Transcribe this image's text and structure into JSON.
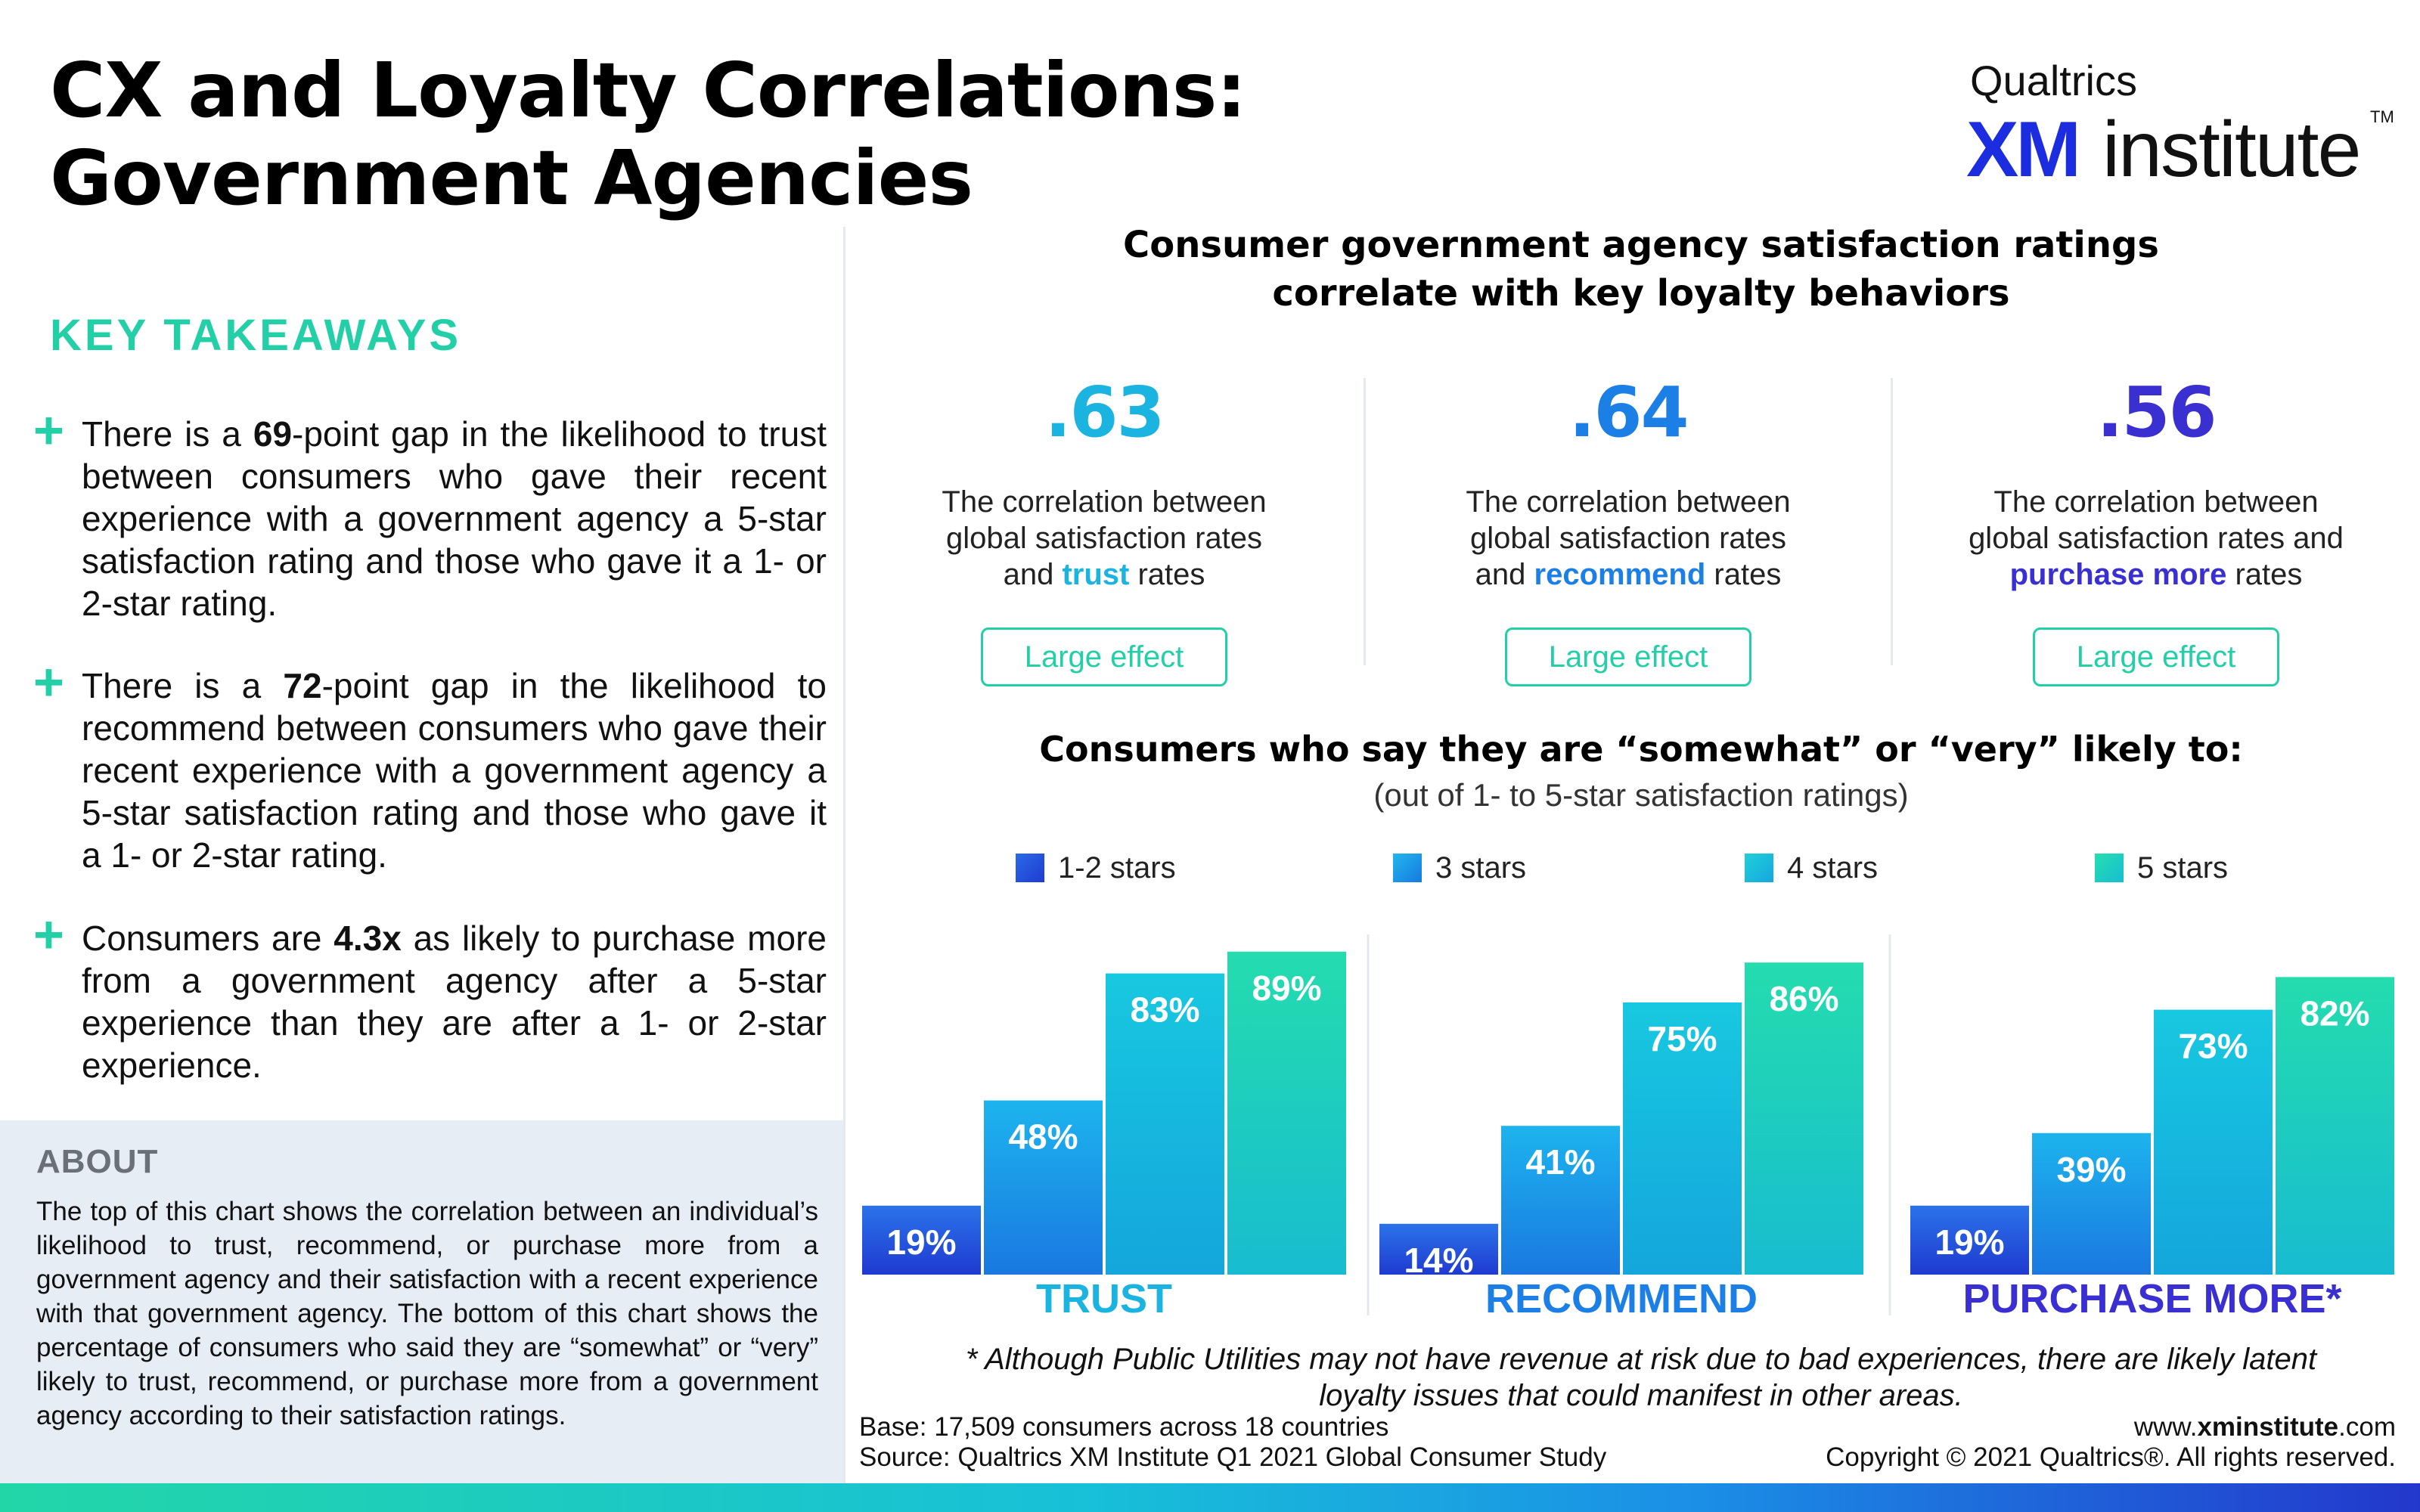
{
  "title": {
    "line1": "CX and Loyalty Correlations:",
    "line2": "Government Agencies"
  },
  "logo": {
    "top": "Qualtrics",
    "xm": "XM",
    "institute": "institute",
    "tm": "TM"
  },
  "takeaways": {
    "heading": "KEY TAKEAWAYS",
    "items": [
      {
        "pre": "There is a ",
        "bold": "69",
        "post": "-point gap in the likelihood to trust between consumers who gave their recent experience with a government agency a 5-star satisfaction rating and those who gave it a 1- or 2-star rating."
      },
      {
        "pre": "There is a ",
        "bold": "72",
        "post": "-point gap in the likelihood to recommend between consumers who gave their recent experience with a government agency a 5-star satisfaction rating and those who gave it a 1- or 2-star rating."
      },
      {
        "pre": "Consumers are ",
        "bold": "4.3x",
        "post": " as likely to purchase more from a government agency after a 5-star experience than they are after a 1- or 2-star experience."
      }
    ]
  },
  "about": {
    "heading": "ABOUT",
    "text": "The top of this chart shows the correlation between an individual’s likelihood to trust, recommend, or purchase more from a government agency and their satisfaction with a recent experience with that government agency. The bottom of this chart shows the percentage of consumers who said they are “somewhat” or “very” likely to trust, recommend, or purchase more from a government agency according to their satisfaction ratings."
  },
  "correlations": {
    "title_line1": "Consumer government agency satisfaction ratings",
    "title_line2": "correlate with key loyalty behaviors",
    "items": [
      {
        "value": ".63",
        "line1": "The correlation between",
        "line2": "global satisfaction rates",
        "line3_pre": "and ",
        "line3_bold": "trust",
        "line3_post": " rates",
        "effect": "Large effect",
        "color": "#1bb3e0"
      },
      {
        "value": ".64",
        "line1": "The correlation between",
        "line2": "global satisfaction rates",
        "line3_pre": "and ",
        "line3_bold": "recommend",
        "line3_post": " rates",
        "effect": "Large effect",
        "color": "#1b7fe6"
      },
      {
        "value": ".56",
        "line1": "The correlation between",
        "line2": "global satisfaction rates and",
        "line3_pre": "",
        "line3_bold": "purchase more",
        "line3_post": " rates",
        "effect": "Large effect",
        "color": "#3a2fd0"
      }
    ]
  },
  "chart_data": {
    "type": "bar",
    "title": "Consumers who say they are “somewhat” or “very” likely to:",
    "subtitle": "(out of 1- to 5-star satisfaction ratings)",
    "categories": [
      "TRUST",
      "RECOMMEND",
      "PURCHASE MORE*"
    ],
    "category_colors": [
      "#1bb3e0",
      "#1b7fe6",
      "#3a2fd0"
    ],
    "series": [
      {
        "name": "1-2 stars",
        "color": "#2257de",
        "values": [
          19,
          14,
          19
        ]
      },
      {
        "name": "3 stars",
        "color": "#1a9ee8",
        "values": [
          48,
          41,
          39
        ]
      },
      {
        "name": "4 stars",
        "color": "#17c0dc",
        "values": [
          83,
          75,
          73
        ]
      },
      {
        "name": "5 stars",
        "color": "#22d6b0",
        "values": [
          89,
          86,
          82
        ]
      }
    ],
    "value_suffix": "%",
    "ylim": [
      0,
      100
    ],
    "legend_position": "top",
    "grid": false
  },
  "footer": {
    "footnote": "* Although Public Utilities may not have revenue at risk due to bad experiences, there are likely latent loyalty issues that could manifest in other areas.",
    "base": "Base: 17,509 consumers across 18 countries",
    "source": "Source: Qualtrics XM Institute Q1 2021 Global Consumer Study",
    "url_pre": "www.",
    "url_bold": "xminstitute",
    "url_post": ".com",
    "copyright": "Copyright © 2021 Qualtrics®. All rights reserved."
  }
}
